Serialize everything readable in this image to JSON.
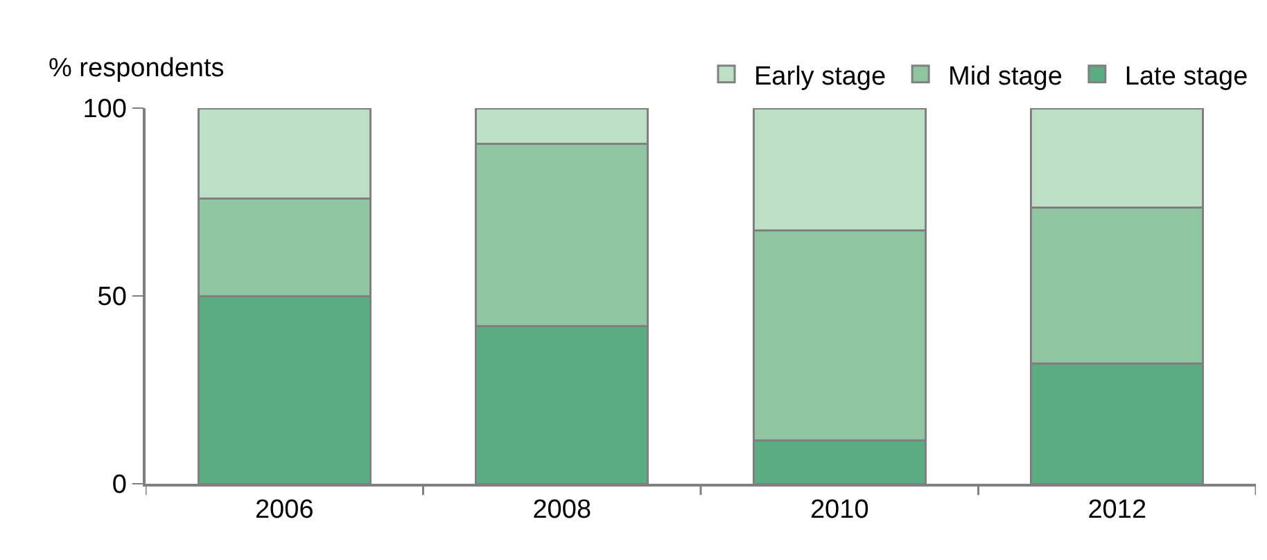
{
  "chart_data": {
    "type": "bar",
    "stacked": true,
    "ylabel": "% respondents",
    "categories": [
      "2006",
      "2008",
      "2010",
      "2012"
    ],
    "series": [
      {
        "name": "Late stage",
        "color": "#5aad83",
        "values": [
          50,
          42,
          11.5,
          32
        ]
      },
      {
        "name": "Mid stage",
        "color": "#8fc5a0",
        "values": [
          26,
          48.5,
          56,
          41.5
        ]
      },
      {
        "name": "Early stage",
        "color": "#bddfc5",
        "values": [
          24,
          9.5,
          32.5,
          26.5
        ]
      }
    ],
    "ylim": [
      0,
      100
    ],
    "yticks": [
      0,
      50,
      100
    ],
    "legend": "top right"
  }
}
